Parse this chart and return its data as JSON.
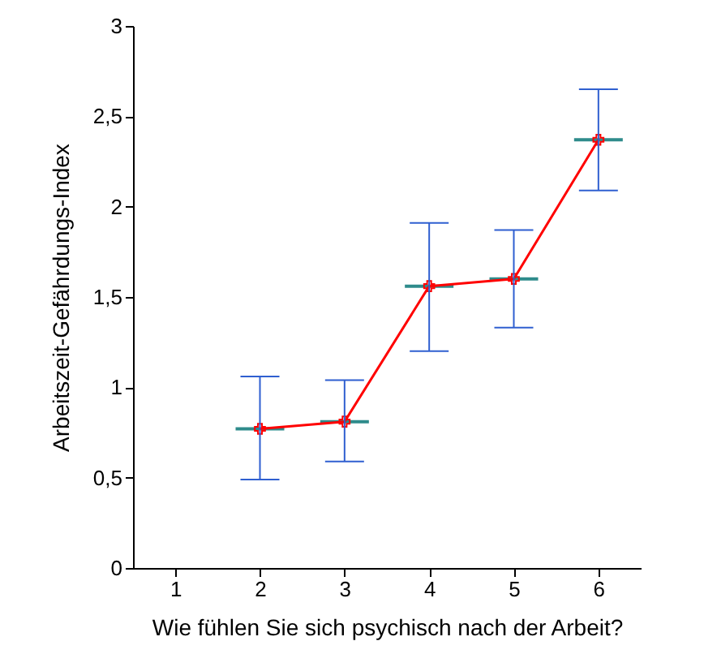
{
  "chart_data": {
    "type": "line",
    "xlabel": "Wie fühlen Sie sich psychisch nach der Arbeit?",
    "ylabel": "Arbeitszeit-Gefährdungs-Index",
    "x": [
      2,
      3,
      4,
      5,
      6
    ],
    "xlim": [
      0.5,
      6.5
    ],
    "xticks": [
      1,
      2,
      3,
      4,
      5,
      6
    ],
    "ylim": [
      0,
      3
    ],
    "yticks": [
      0,
      {
        "value": 0.5,
        "label": "0,5"
      },
      1,
      {
        "value": 1.5,
        "label": "1,5"
      },
      2,
      {
        "value": 2.5,
        "label": "2,5"
      },
      3
    ],
    "marker": "cross",
    "line_style": "solid",
    "series": [
      {
        "color": "#ff0000",
        "values": [
          0.77,
          0.81,
          1.56,
          1.6,
          2.37
        ],
        "errors": [
          [
            0.49,
            1.06
          ],
          [
            0.59,
            1.04
          ],
          [
            1.2,
            1.91
          ],
          [
            1.33,
            1.87
          ],
          [
            2.09,
            2.65
          ]
        ]
      }
    ]
  }
}
